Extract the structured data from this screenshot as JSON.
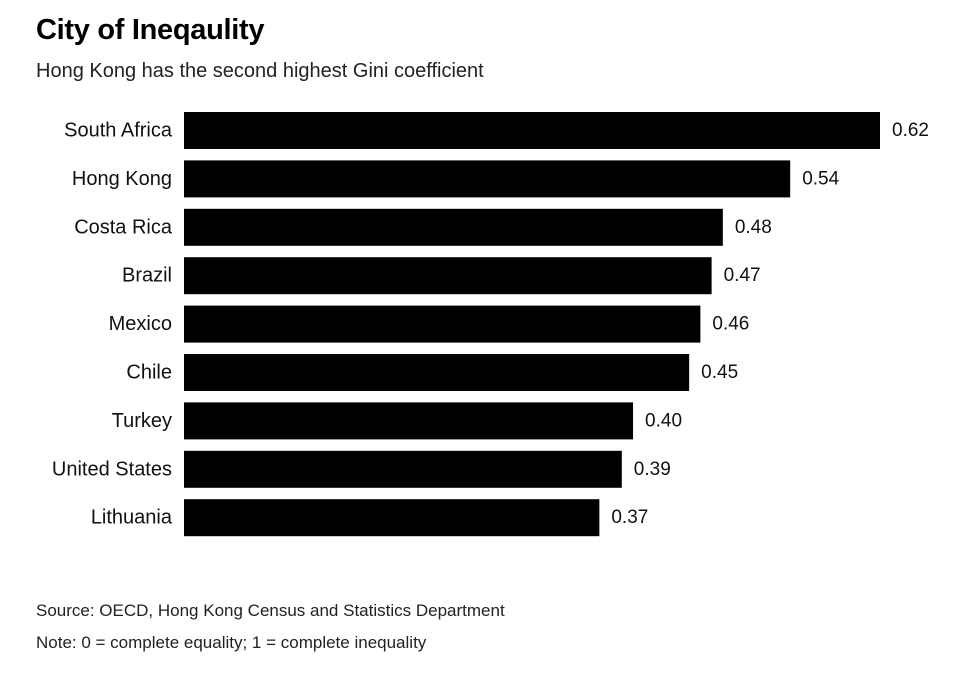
{
  "header": {
    "title": "City of Ineqaulity",
    "subtitle": "Hong Kong has the second highest Gini coefficient"
  },
  "footer": {
    "source": "Source: OECD, Hong Kong Census and Statistics Department",
    "note": "Note: 0 = complete equality; 1 = complete inequality"
  },
  "chart_data": {
    "type": "bar",
    "orientation": "horizontal",
    "title": "City of Ineqaulity",
    "subtitle": "Hong Kong has the second highest Gini coefficient",
    "categories": [
      "South Africa",
      "Hong Kong",
      "Costa Rica",
      "Brazil",
      "Mexico",
      "Chile",
      "Turkey",
      "United States",
      "Lithuania"
    ],
    "values": [
      0.62,
      0.54,
      0.48,
      0.47,
      0.46,
      0.45,
      0.4,
      0.39,
      0.37
    ],
    "value_labels": [
      "0.62",
      "0.54",
      "0.48",
      "0.47",
      "0.46",
      "0.45",
      "0.40",
      "0.39",
      "0.37"
    ],
    "xlabel": "",
    "ylabel": "",
    "xlim": [
      0,
      0.62
    ],
    "grid": false,
    "legend": "none",
    "bar_color": "#000000"
  }
}
